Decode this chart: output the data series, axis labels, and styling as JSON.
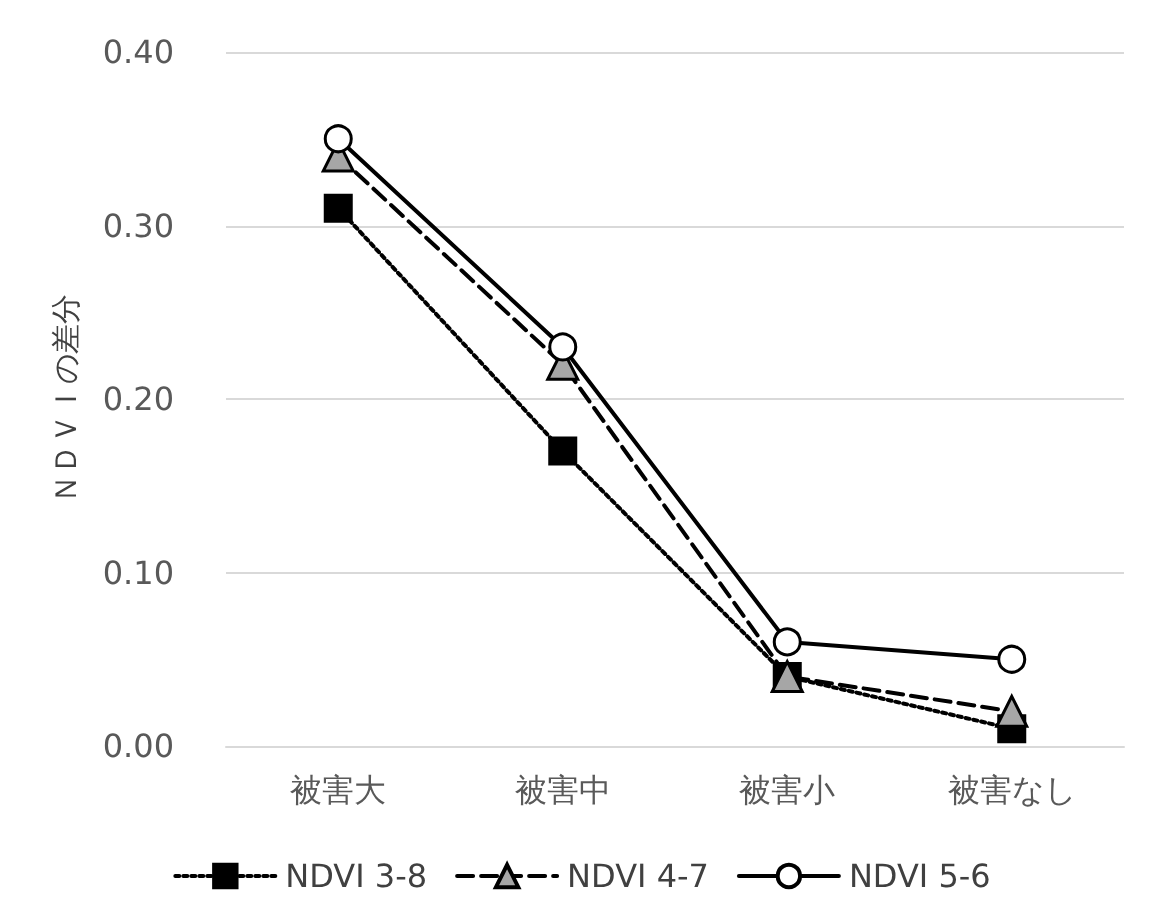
{
  "chart_data": {
    "type": "line",
    "ylabel": "ＮＤＶＩの差分",
    "categories": [
      "被害大",
      "被害中",
      "被害小",
      "被害なし"
    ],
    "series": [
      {
        "name": "NDVI 3-8",
        "color": "#000000",
        "marker": "square",
        "line_style": "dotted",
        "values": [
          0.31,
          0.17,
          0.04,
          0.01
        ]
      },
      {
        "name": "NDVI 4-7",
        "color": "#000000",
        "marker": "triangle",
        "line_style": "dashed",
        "values": [
          0.34,
          0.22,
          0.04,
          0.02
        ]
      },
      {
        "name": "NDVI 5-6",
        "color": "#000000",
        "marker": "circle",
        "line_style": "solid",
        "values": [
          0.35,
          0.23,
          0.06,
          0.05
        ]
      }
    ],
    "ylim": [
      0,
      0.4
    ],
    "yticks": [
      {
        "value": 0,
        "label": "0.00"
      },
      {
        "value": 0.1,
        "label": "0.10"
      },
      {
        "value": 0.2,
        "label": "0.20"
      },
      {
        "value": 0.3,
        "label": "0.30"
      },
      {
        "value": 0.4,
        "label": "0.40"
      }
    ],
    "grid": "y",
    "legend": "bottom"
  }
}
